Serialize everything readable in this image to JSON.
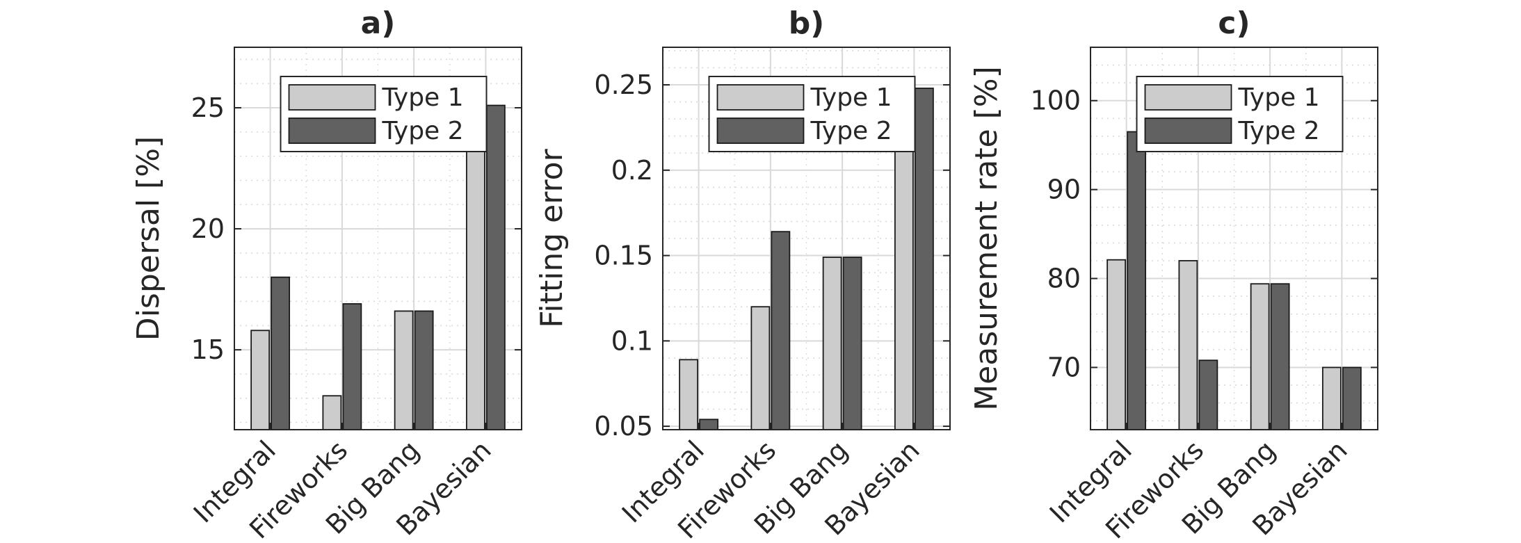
{
  "chart_data": [
    {
      "type": "bar",
      "title": "a)",
      "xlabel": "",
      "ylabel": "Dispersal [%]",
      "categories": [
        "Integral",
        "Fireworks",
        "Big Bang",
        "Bayesian"
      ],
      "series": [
        {
          "name": "Type 1",
          "values": [
            15.8,
            13.1,
            16.6,
            25.1
          ],
          "color": "#cccccc"
        },
        {
          "name": "Type 2",
          "values": [
            18.0,
            16.9,
            16.6,
            25.1
          ],
          "color": "#616161"
        }
      ],
      "ylim": [
        11.7,
        27.5
      ],
      "yticks": [
        15,
        20,
        25
      ],
      "ytick_labels": [
        "15",
        "20",
        "25"
      ],
      "grid": true,
      "minor_grid": true,
      "legend_position": "top"
    },
    {
      "type": "bar",
      "title": "b)",
      "xlabel": "",
      "ylabel": "Fitting error",
      "categories": [
        "Integral",
        "Fireworks",
        "Big Bang",
        "Bayesian"
      ],
      "series": [
        {
          "name": "Type 1",
          "values": [
            0.089,
            0.12,
            0.149,
            0.248
          ],
          "color": "#cccccc"
        },
        {
          "name": "Type 2",
          "values": [
            0.054,
            0.164,
            0.149,
            0.248
          ],
          "color": "#616161"
        }
      ],
      "ylim": [
        0.048,
        0.272
      ],
      "yticks": [
        0.05,
        0.1,
        0.15,
        0.2,
        0.25
      ],
      "ytick_labels": [
        "0.05",
        "0.1",
        "0.15",
        "0.2",
        "0.25"
      ],
      "grid": true,
      "minor_grid": true,
      "legend_position": "top"
    },
    {
      "type": "bar",
      "title": "c)",
      "xlabel": "",
      "ylabel": "Measurement rate [%]",
      "categories": [
        "Integral",
        "Fireworks",
        "Big Bang",
        "Bayesian"
      ],
      "series": [
        {
          "name": "Type 1",
          "values": [
            82.1,
            82.0,
            79.4,
            70.0
          ],
          "color": "#cccccc"
        },
        {
          "name": "Type 2",
          "values": [
            96.5,
            70.8,
            79.4,
            70.0
          ],
          "color": "#616161"
        }
      ],
      "ylim": [
        63,
        106
      ],
      "yticks": [
        70,
        80,
        90,
        100
      ],
      "ytick_labels": [
        "70",
        "80",
        "90",
        "100"
      ],
      "grid": true,
      "minor_grid": true,
      "legend_position": "top"
    }
  ]
}
